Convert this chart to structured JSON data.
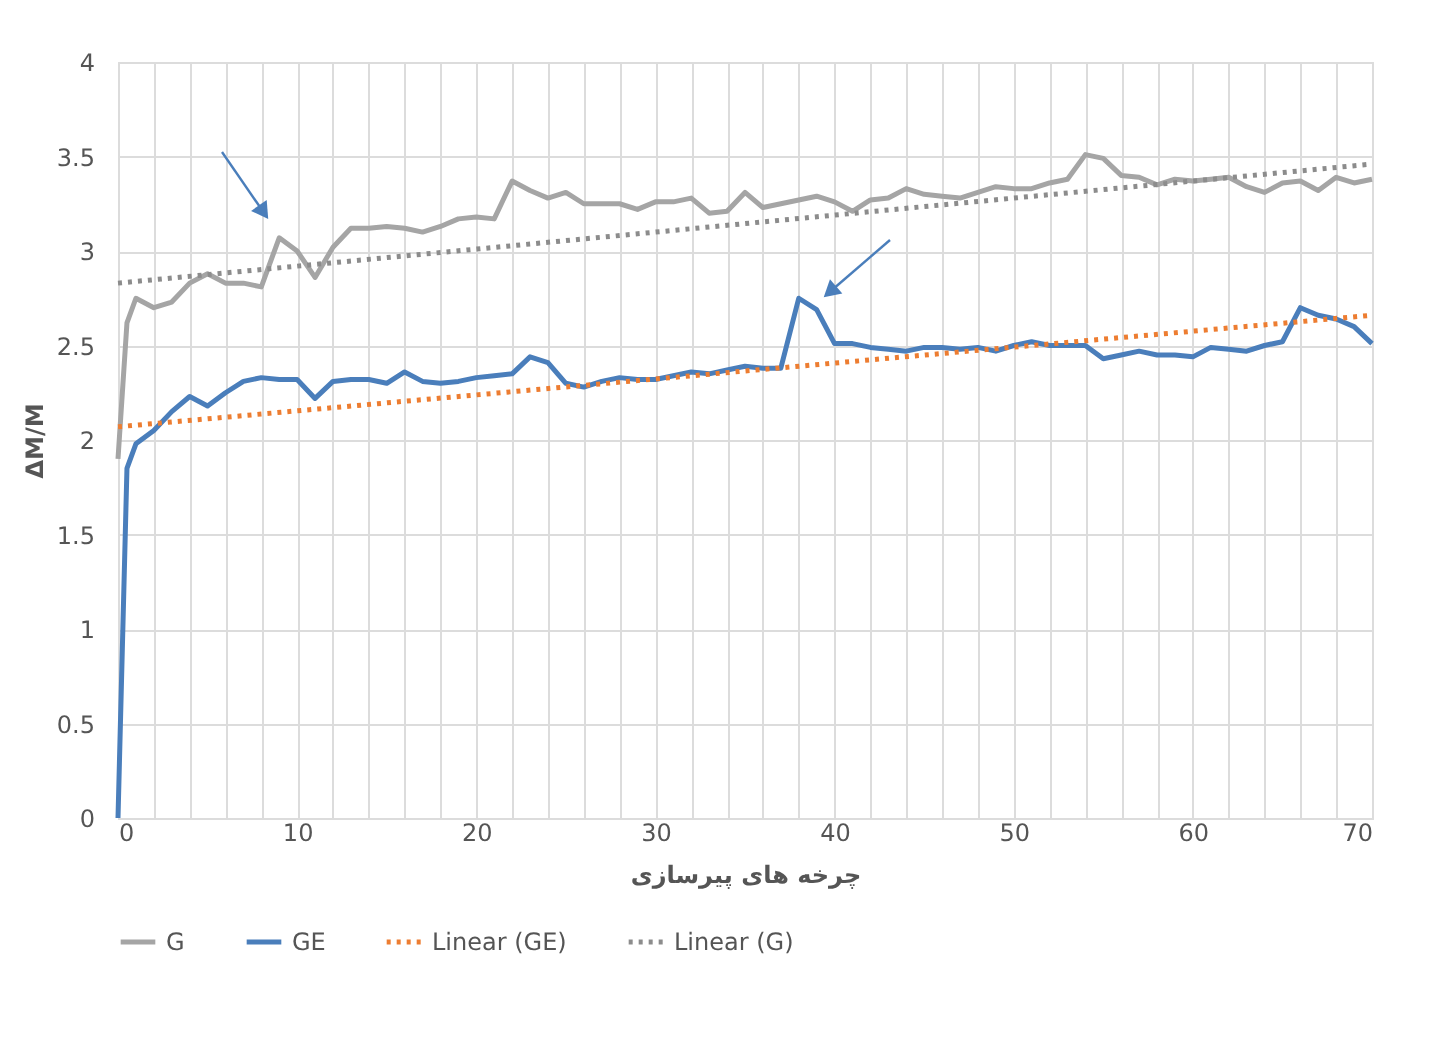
{
  "chart_data": {
    "type": "line",
    "xlabel": "چرخه های پیرسازی",
    "ylabel": "ΔM/M",
    "xlim": [
      0,
      70
    ],
    "ylim": [
      0,
      4
    ],
    "xticks": [
      0,
      {
        "value": 2,
        "label": null
      },
      {
        "value": 4,
        "label": null
      },
      {
        "value": 6,
        "label": null
      },
      {
        "value": 8,
        "label": null
      },
      10,
      {
        "value": 12,
        "label": null
      },
      {
        "value": 14,
        "label": null
      },
      {
        "value": 16,
        "label": null
      },
      {
        "value": 18,
        "label": null
      },
      20,
      {
        "value": 22,
        "label": null
      },
      {
        "value": 24,
        "label": null
      },
      {
        "value": 26,
        "label": null
      },
      {
        "value": 28,
        "label": null
      },
      30,
      {
        "value": 32,
        "label": null
      },
      {
        "value": 34,
        "label": null
      },
      {
        "value": 36,
        "label": null
      },
      {
        "value": 38,
        "label": null
      },
      40,
      {
        "value": 42,
        "label": null
      },
      {
        "value": 44,
        "label": null
      },
      {
        "value": 46,
        "label": null
      },
      {
        "value": 48,
        "label": null
      },
      50,
      {
        "value": 52,
        "label": null
      },
      {
        "value": 54,
        "label": null
      },
      {
        "value": 56,
        "label": null
      },
      {
        "value": 58,
        "label": null
      },
      60,
      {
        "value": 62,
        "label": null
      },
      {
        "value": 64,
        "label": null
      },
      {
        "value": 66,
        "label": null
      },
      {
        "value": 68,
        "label": null
      },
      70
    ],
    "yticks": [
      0,
      0.5,
      1,
      1.5,
      2,
      2.5,
      3,
      3.5,
      4
    ],
    "grid": true,
    "legend": "bottom",
    "marker": "none",
    "series": [
      {
        "name": "G",
        "color": "#a5a5a5",
        "line_style": "solid",
        "x": [
          0,
          0.5,
          1,
          2,
          3,
          4,
          5,
          6,
          7,
          8,
          9,
          10,
          11,
          12,
          13,
          14,
          15,
          16,
          17,
          18,
          19,
          20,
          21,
          22,
          23,
          24,
          25,
          26,
          27,
          28,
          29,
          30,
          31,
          32,
          33,
          34,
          35,
          36,
          37,
          38,
          39,
          40,
          41,
          42,
          43,
          44,
          45,
          46,
          47,
          48,
          49,
          50,
          51,
          52,
          53,
          54,
          55,
          56,
          57,
          58,
          59,
          60,
          61,
          62,
          63,
          64,
          65,
          66,
          67,
          68,
          69,
          70
        ],
        "values": [
          1.9,
          2.62,
          2.75,
          2.7,
          2.73,
          2.83,
          2.88,
          2.83,
          2.83,
          2.81,
          3.07,
          3.0,
          2.86,
          3.02,
          3.12,
          3.12,
          3.13,
          3.12,
          3.1,
          3.13,
          3.17,
          3.18,
          3.17,
          3.37,
          3.32,
          3.28,
          3.31,
          3.25,
          3.25,
          3.25,
          3.22,
          3.26,
          3.26,
          3.28,
          3.2,
          3.21,
          3.31,
          3.23,
          3.25,
          3.27,
          3.29,
          3.26,
          3.21,
          3.27,
          3.28,
          3.33,
          3.3,
          3.29,
          3.28,
          3.31,
          3.34,
          3.33,
          3.33,
          3.36,
          3.38,
          3.51,
          3.49,
          3.4,
          3.39,
          3.35,
          3.38,
          3.37,
          3.38,
          3.39,
          3.34,
          3.31,
          3.36,
          3.37,
          3.32,
          3.39,
          3.36,
          3.38
        ]
      },
      {
        "name": "GE",
        "color": "#4a7ebb",
        "line_style": "solid",
        "x": [
          0,
          0.5,
          1,
          2,
          3,
          4,
          5,
          6,
          7,
          8,
          9,
          10,
          11,
          12,
          13,
          14,
          15,
          16,
          17,
          18,
          19,
          20,
          21,
          22,
          23,
          24,
          25,
          26,
          27,
          28,
          29,
          30,
          31,
          32,
          33,
          34,
          35,
          36,
          37,
          38,
          39,
          40,
          41,
          42,
          43,
          44,
          45,
          46,
          47,
          48,
          49,
          50,
          51,
          52,
          53,
          54,
          55,
          56,
          57,
          58,
          59,
          60,
          61,
          62,
          63,
          64,
          65,
          66,
          67,
          68,
          69,
          70
        ],
        "values": [
          0,
          1.85,
          1.98,
          2.05,
          2.15,
          2.23,
          2.18,
          2.25,
          2.31,
          2.33,
          2.32,
          2.32,
          2.22,
          2.31,
          2.32,
          2.32,
          2.3,
          2.36,
          2.31,
          2.3,
          2.31,
          2.33,
          2.34,
          2.35,
          2.44,
          2.41,
          2.3,
          2.28,
          2.31,
          2.33,
          2.32,
          2.32,
          2.34,
          2.36,
          2.35,
          2.37,
          2.39,
          2.38,
          2.38,
          2.75,
          2.69,
          2.51,
          2.51,
          2.49,
          2.48,
          2.47,
          2.49,
          2.49,
          2.48,
          2.49,
          2.47,
          2.5,
          2.52,
          2.5,
          2.5,
          2.5,
          2.43,
          2.45,
          2.47,
          2.45,
          2.45,
          2.44,
          2.49,
          2.48,
          2.47,
          2.5,
          2.52,
          2.7,
          2.66,
          2.64,
          2.6,
          2.51
        ]
      },
      {
        "name": "Linear (GE)",
        "color": "#ed7d31",
        "line_style": "dotted",
        "x": [
          0,
          70
        ],
        "values": [
          2.07,
          2.66
        ]
      },
      {
        "name": "Linear (G)",
        "color": "#8c8c8c",
        "line_style": "dotted",
        "x": [
          0,
          70
        ],
        "values": [
          2.83,
          3.46
        ]
      }
    ]
  }
}
